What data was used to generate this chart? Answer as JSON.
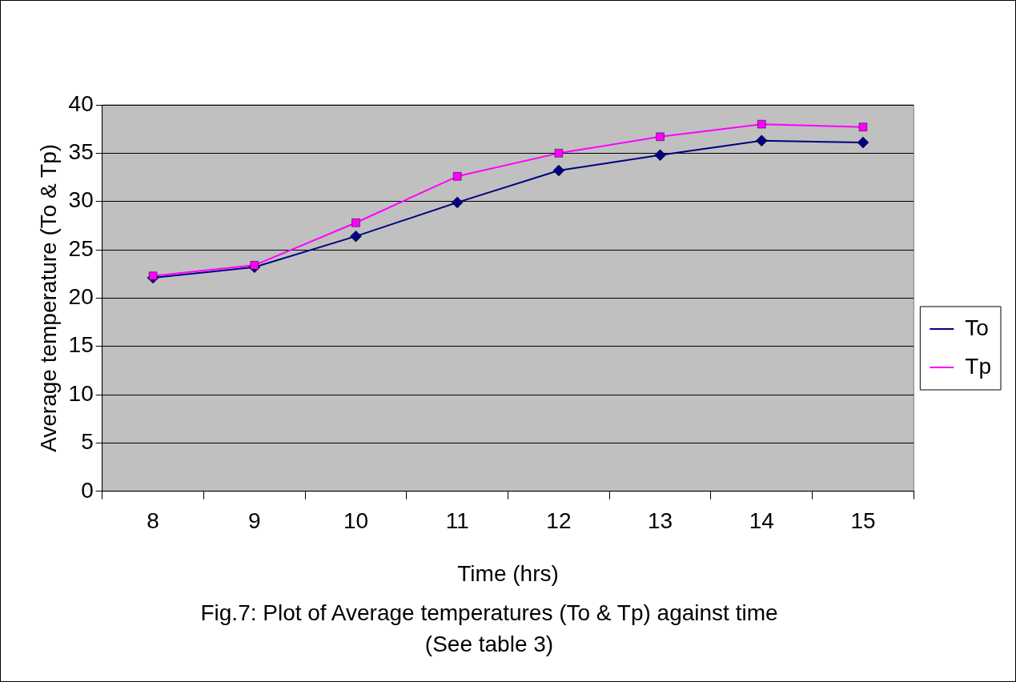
{
  "chart_data": {
    "type": "line",
    "xlabel": "Time (hrs)",
    "ylabel": "Average temperature (To & Tp)",
    "categories": [
      "8",
      "9",
      "10",
      "11",
      "12",
      "13",
      "14",
      "15"
    ],
    "series": [
      {
        "name": "To",
        "color": "#000080",
        "marker": "diamond",
        "values": [
          22.1,
          23.2,
          26.4,
          29.9,
          33.2,
          34.8,
          36.3,
          36.1
        ]
      },
      {
        "name": "Tp",
        "color": "#ff00ff",
        "marker": "square",
        "values": [
          22.3,
          23.4,
          27.8,
          32.6,
          35.0,
          36.7,
          38.0,
          37.7
        ]
      }
    ],
    "ylim": [
      0,
      40
    ],
    "yticks": [
      0,
      5,
      10,
      15,
      20,
      25,
      30,
      35,
      40
    ],
    "grid": "y",
    "legend": "right",
    "annotations": [
      "Fig.7: Plot of Average temperatures (To & Tp) against time",
      "(See table 3)"
    ]
  }
}
